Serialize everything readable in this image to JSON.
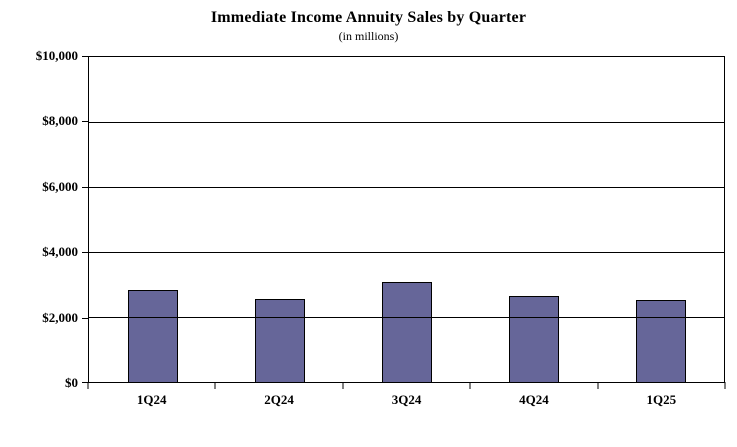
{
  "chart_data": {
    "type": "bar",
    "title": "Immediate Income Annuity Sales by Quarter",
    "subtitle": "(in millions)",
    "categories": [
      "1Q24",
      "2Q24",
      "3Q24",
      "4Q24",
      "1Q25"
    ],
    "values": [
      2820,
      2540,
      3090,
      2640,
      2510
    ],
    "xlabel": "",
    "ylabel": "",
    "ylim": [
      0,
      10000
    ],
    "yticks": [
      {
        "label": "$0",
        "value": 0
      },
      {
        "label": "$2,000",
        "value": 2000
      },
      {
        "label": "$4,000",
        "value": 4000
      },
      {
        "label": "$6,000",
        "value": 6000
      },
      {
        "label": "$8,000",
        "value": 8000
      },
      {
        "label": "$10,000",
        "value": 10000
      }
    ],
    "grid": true,
    "legend": "none",
    "colors": {
      "bar_fill": "#666699",
      "bar_border": "#000000",
      "gridline": "#000000",
      "axis": "#000000",
      "background": "#ffffff",
      "text": "#000000"
    }
  }
}
